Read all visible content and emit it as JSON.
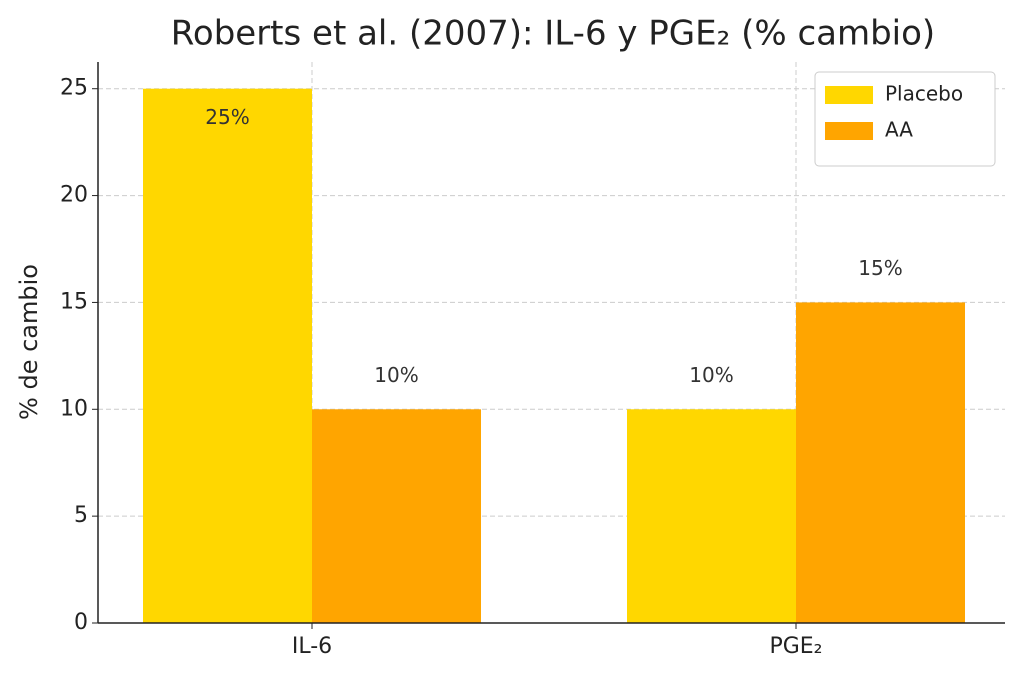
{
  "chart_data": {
    "type": "bar",
    "title": "Roberts et al. (2007): IL-6 y PGE₂ (% cambio)",
    "y_label": "% de cambio",
    "categories": [
      "IL-6",
      "PGE₂"
    ],
    "series": [
      {
        "name": "Placebo",
        "color": "#ffd700",
        "values": [
          25,
          10
        ],
        "value_labels": [
          "25%",
          "10%"
        ]
      },
      {
        "name": "AA",
        "color": "#ffa500",
        "values": [
          10,
          15
        ],
        "value_labels": [
          "10%",
          "15%"
        ]
      }
    ],
    "ylim": [
      0,
      26.25
    ],
    "yticks": [
      0,
      5,
      10,
      15,
      20,
      25
    ],
    "grid": true,
    "legend": "upper right"
  }
}
